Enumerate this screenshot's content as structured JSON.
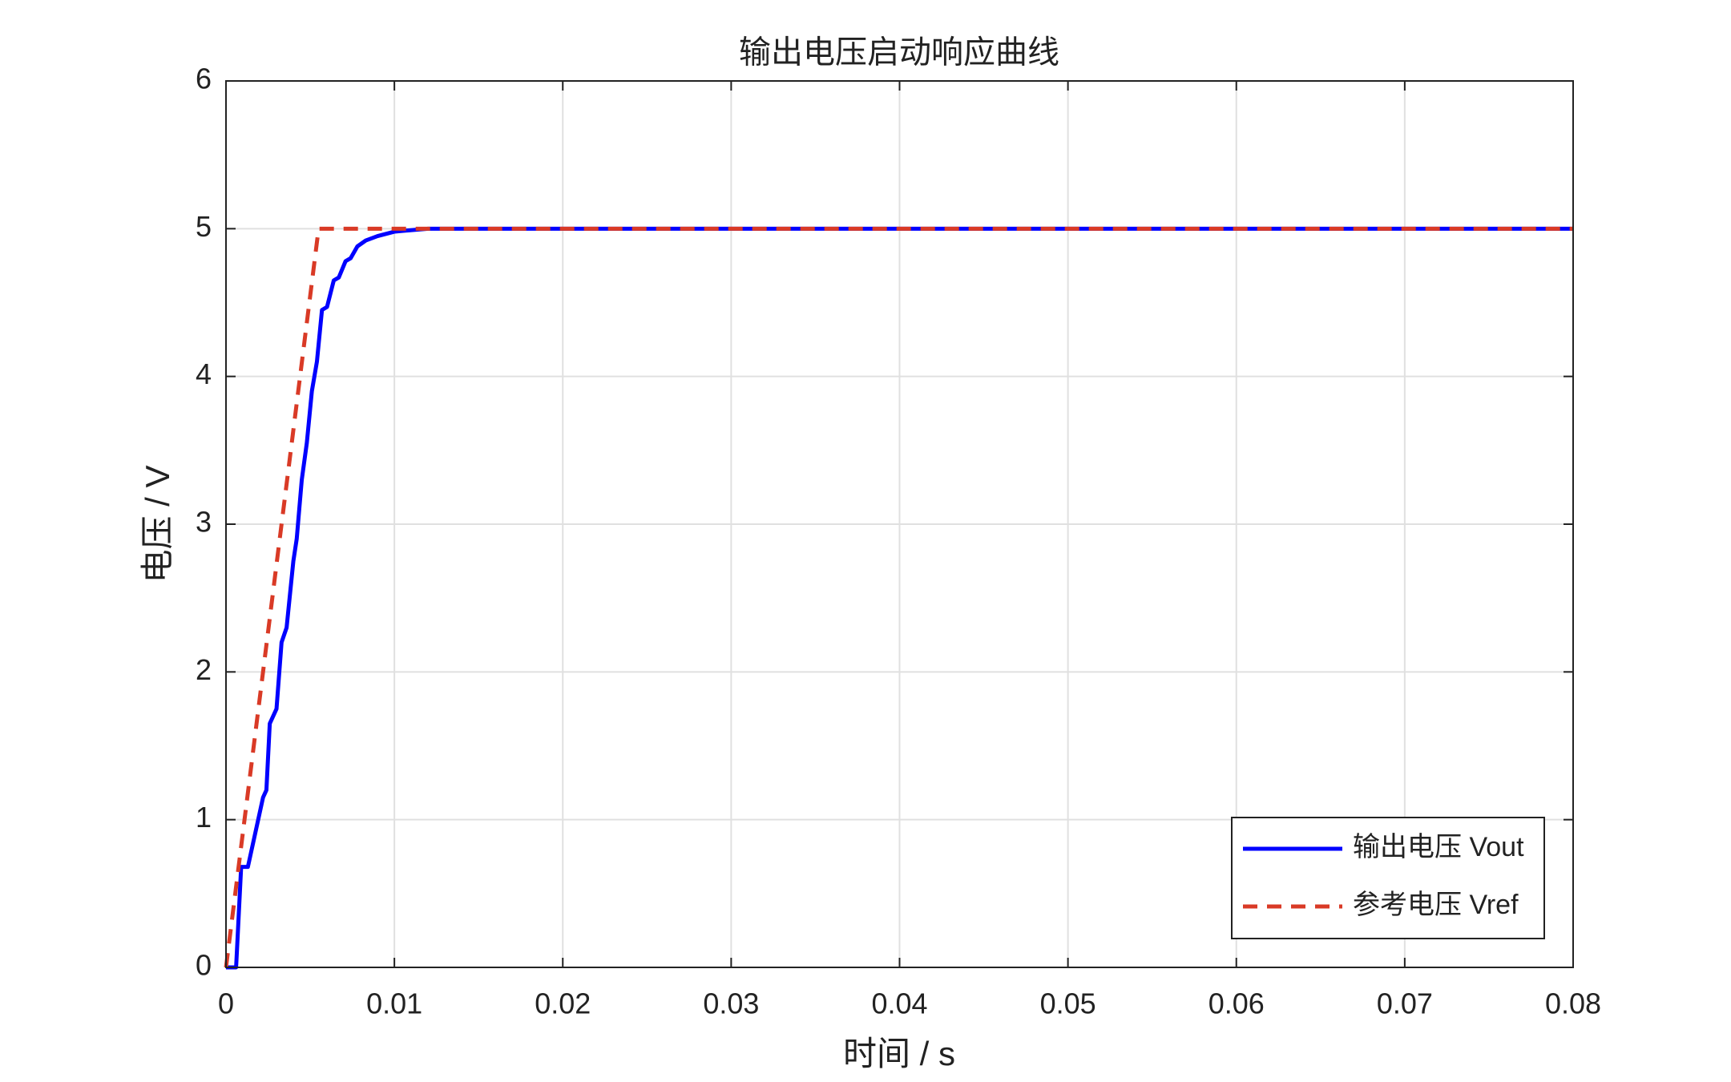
{
  "chart_data": {
    "type": "line",
    "title": "输出电压启动响应曲线",
    "x_label": "时间 / s",
    "y_label": "电压 / V",
    "xlim": [
      0,
      0.08
    ],
    "ylim": [
      0,
      6
    ],
    "xticks": [
      0,
      0.01,
      0.02,
      0.03,
      0.04,
      0.05,
      0.06,
      0.07,
      0.08
    ],
    "yticks": [
      0,
      1,
      2,
      3,
      4,
      5,
      6
    ],
    "grid": true,
    "legend": "lower right",
    "series": [
      {
        "name": "输出电压 Vout",
        "color": "#0000ff",
        "style": "solid",
        "x": [
          0,
          0.0006,
          0.0009,
          0.0013,
          0.0022,
          0.0024,
          0.0026,
          0.003,
          0.0033,
          0.0036,
          0.004,
          0.0042,
          0.0045,
          0.0048,
          0.0051,
          0.0054,
          0.0057,
          0.006,
          0.0064,
          0.0067,
          0.0071,
          0.0074,
          0.0078,
          0.0083,
          0.009,
          0.01,
          0.012,
          0.08
        ],
        "values": [
          0,
          0,
          0.68,
          0.68,
          1.15,
          1.2,
          1.65,
          1.75,
          2.2,
          2.3,
          2.75,
          2.9,
          3.3,
          3.55,
          3.9,
          4.1,
          4.45,
          4.47,
          4.65,
          4.67,
          4.78,
          4.8,
          4.88,
          4.92,
          4.95,
          4.98,
          5,
          5
        ]
      },
      {
        "name": "参考电压 Vref",
        "color": "#d93a26",
        "style": "dashed",
        "x": [
          0,
          0.0055,
          0.08
        ],
        "values": [
          0,
          5,
          5
        ]
      }
    ]
  }
}
